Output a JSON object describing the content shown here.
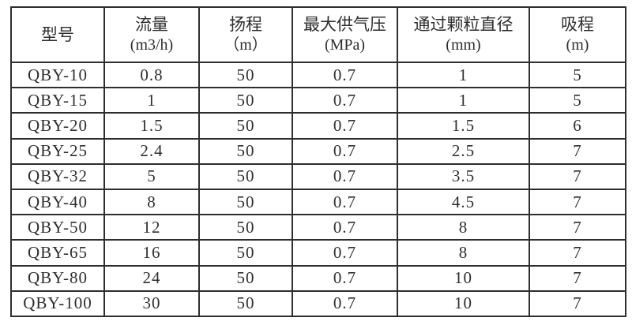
{
  "table": {
    "column_keys": [
      "model",
      "flow",
      "head",
      "max_air_pressure",
      "particle_diameter",
      "suction"
    ],
    "columns": [
      {
        "label": "型号",
        "unit": ""
      },
      {
        "label": "流量",
        "unit": "(m3/h)"
      },
      {
        "label": "扬程",
        "unit": "（m）"
      },
      {
        "label": "最大供气压",
        "unit": "(MPa)"
      },
      {
        "label": "通过颗粒直径",
        "unit": "(mm)"
      },
      {
        "label": "吸程",
        "unit": "(m)"
      }
    ],
    "rows": [
      [
        "QBY-10",
        "0.8",
        "50",
        "0.7",
        "1",
        "5"
      ],
      [
        "QBY-15",
        "1",
        "50",
        "0.7",
        "1",
        "5"
      ],
      [
        "QBY-20",
        "1.5",
        "50",
        "0.7",
        "1.5",
        "6"
      ],
      [
        "QBY-25",
        "2.4",
        "50",
        "0.7",
        "2.5",
        "7"
      ],
      [
        "QBY-32",
        "5",
        "50",
        "0.7",
        "3.5",
        "7"
      ],
      [
        "QBY-40",
        "8",
        "50",
        "0.7",
        "4.5",
        "7"
      ],
      [
        "QBY-50",
        "12",
        "50",
        "0.7",
        "8",
        "7"
      ],
      [
        "QBY-65",
        "16",
        "50",
        "0.7",
        "8",
        "7"
      ],
      [
        "QBY-80",
        "24",
        "50",
        "0.7",
        "10",
        "7"
      ],
      [
        "QBY-100",
        "30",
        "50",
        "0.7",
        "10",
        "7"
      ]
    ]
  },
  "colors": {
    "border": "#2e2e2e",
    "text": "#2e2e2e",
    "background": "#ffffff"
  }
}
